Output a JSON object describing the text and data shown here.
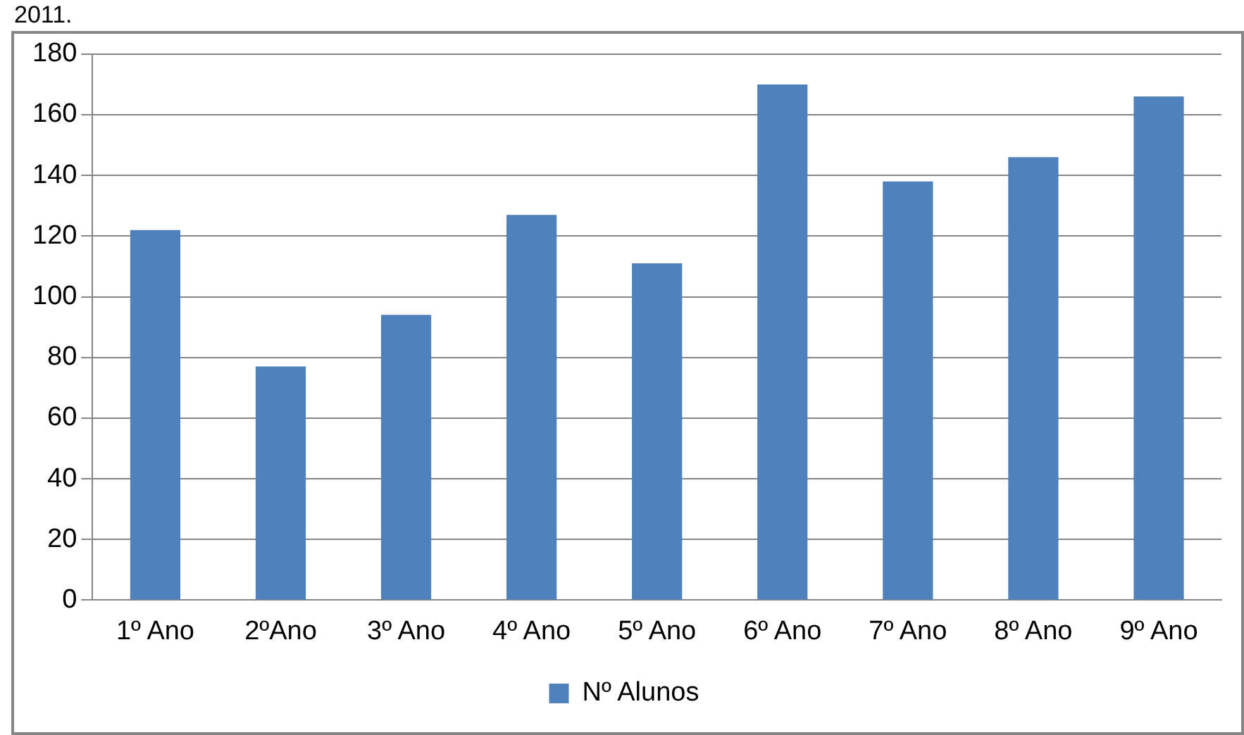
{
  "chart_data": {
    "type": "bar",
    "annotations": [
      "2011."
    ],
    "categories": [
      "1º Ano",
      "2ºAno",
      "3º Ano",
      "4º Ano",
      "5º Ano",
      "6º Ano",
      "7º Ano",
      "8º Ano",
      "9º Ano"
    ],
    "series": [
      {
        "name": "Nº Alunos",
        "color": "#4f81bd",
        "values": [
          122,
          77,
          94,
          127,
          111,
          170,
          138,
          146,
          166
        ]
      }
    ],
    "ylim": [
      0,
      180
    ],
    "yticks": [
      0,
      20,
      40,
      60,
      80,
      100,
      120,
      140,
      160,
      180
    ],
    "grid": "y",
    "legend": "bottom"
  }
}
